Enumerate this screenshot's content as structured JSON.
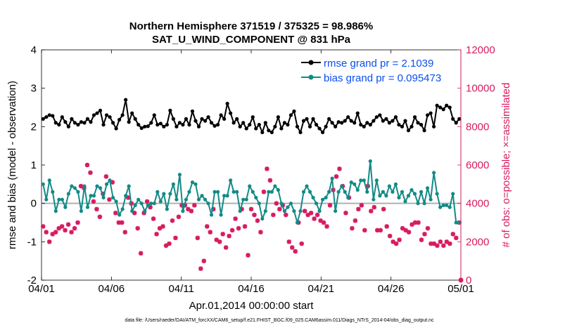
{
  "chart_data": {
    "type": "line",
    "title": "Northern Hemisphere 371519 / 375325 = 98.986%",
    "subtitle": "SAT_U_WIND_COMPONENT @ 831 hPa",
    "xlabel": "Apr.01,2014 00:00:00 start",
    "ylabel_left": "rmse and bias (model - observation)",
    "ylabel_right": "# of obs: o=possible; ×=assimilated",
    "ylim_left": [
      -2,
      4
    ],
    "ylim_right": [
      0,
      12000
    ],
    "xlim_days": [
      0,
      30
    ],
    "x_ticks": [
      0,
      5,
      10,
      15,
      20,
      25,
      30
    ],
    "x_tick_labels": [
      "04/01",
      "04/06",
      "04/11",
      "04/16",
      "04/21",
      "04/26",
      "05/01"
    ],
    "y_ticks_left": [
      -2,
      -1,
      0,
      1,
      2,
      3,
      4
    ],
    "y_tick_labels_left": [
      "-2",
      "-1",
      "0",
      "1",
      "2",
      "3",
      "4"
    ],
    "y_ticks_right": [
      0,
      2000,
      4000,
      6000,
      8000,
      10000,
      12000
    ],
    "y_tick_labels_right": [
      "0",
      "2000",
      "4000",
      "6000",
      "8000",
      "10000",
      "12000"
    ],
    "zero_line": 0,
    "colors": {
      "rmse": "#000000",
      "bias": "#138a86",
      "obs": "#d81b60",
      "legend_text": "#0a4ff0",
      "zero_line": "#b0b0b0"
    },
    "series": [
      {
        "name": "rmse",
        "legend": "rmse grand pr = 2.1039",
        "values": [
          2.2,
          2.25,
          2.3,
          2.28,
          2.1,
          2.05,
          2.25,
          2.12,
          2.0,
          2.2,
          2.1,
          2.05,
          2.12,
          2.1,
          2.2,
          2.12,
          2.3,
          2.35,
          2.42,
          2.05,
          2.3,
          2.25,
          2.1,
          1.95,
          2.18,
          2.3,
          2.7,
          2.12,
          2.35,
          2.2,
          2.05,
          1.96,
          2.0,
          2.01,
          2.1,
          2.3,
          2.05,
          2.08,
          2.0,
          2.05,
          2.42,
          2.2,
          2.0,
          2.1,
          2.05,
          2.2,
          2.05,
          2.4,
          2.15,
          2.0,
          2.2,
          2.15,
          2.25,
          2.1,
          2.02,
          2.05,
          2.3,
          2.2,
          2.6,
          2.35,
          2.1,
          2.2,
          2.0,
          2.1,
          1.95,
          2.05,
          2.25,
          1.95,
          2.05,
          1.85,
          2.1,
          1.9,
          1.85,
          2.0,
          2.25,
          1.95,
          2.1,
          2.05,
          2.3,
          2.4,
          2.0,
          1.85,
          2.15,
          2.2,
          2.0,
          2.2,
          2.05,
          1.95,
          1.85,
          2.0,
          2.2,
          2.1,
          2.0,
          2.12,
          2.1,
          2.15,
          2.25,
          2.15,
          2.1,
          2.35,
          2.05,
          2.0,
          2.1,
          2.05,
          2.15,
          2.25,
          2.3,
          2.15,
          2.2,
          2.1,
          2.15,
          2.25,
          2.05,
          2.0,
          2.15,
          1.9,
          2.0,
          2.25,
          2.1,
          2.05,
          1.9,
          2.3,
          2.35,
          2.0,
          2.55,
          2.5,
          2.45,
          2.55,
          2.5,
          2.2,
          2.1,
          2.2
        ]
      },
      {
        "name": "bias",
        "legend": "bias grand pr = 0.095473",
        "values": [
          0.5,
          0.1,
          0.6,
          0.3,
          -0.2,
          0.1,
          0.1,
          -0.1,
          0.25,
          0.45,
          0.4,
          0.3,
          -0.2,
          0.45,
          -0.1,
          0.2,
          0.2,
          0.45,
          0.4,
          0.15,
          0.5,
          0.6,
          0.15,
          0.05,
          -0.3,
          -0.15,
          0.2,
          0.45,
          -0.2,
          -0.05,
          0.1,
          0.0,
          -0.2,
          -0.05,
          0.0,
          0.0,
          0.3,
          0.05,
          0.25,
          -0.15,
          0.25,
          0.5,
          0.1,
          0.75,
          -0.2,
          0.1,
          0.3,
          0.55,
          0.5,
          0.1,
          0.2,
          0.1,
          0.0,
          -0.3,
          0.3,
          0.3,
          -0.3,
          0.2,
          0.2,
          0.6,
          0.3,
          0.3,
          -0.2,
          0.1,
          0.1,
          0.45,
          0.3,
          0.15,
          0.0,
          -0.4,
          -0.2,
          0.3,
          0.3,
          0.45,
          0.35,
          0.0,
          -0.2,
          -0.1,
          0.0,
          -0.2,
          -0.5,
          -0.2,
          0.3,
          0.45,
          0.3,
          0.15,
          0.0,
          -0.2,
          0.1,
          0.15,
          0.3,
          0.65,
          -0.2,
          0.3,
          0.45,
          0.3,
          0.15,
          0.55,
          0.5,
          0.35,
          0.6,
          0.6,
          0.3,
          1.1,
          0.1,
          0.6,
          0.2,
          0.3,
          0.2,
          0.45,
          0.3,
          0.5,
          0.15,
          0.3,
          0.05,
          0.2,
          0.35,
          0.25,
          0.0,
          0.3,
          0.0,
          0.4,
          0.1,
          0.8,
          0.25,
          -0.1,
          -0.05,
          -0.05,
          -0.1,
          0.25,
          -0.5,
          -0.5
        ]
      },
      {
        "name": "obs assimilated",
        "values_right_axis": [
          2800,
          2500,
          2000,
          2400,
          2500,
          2700,
          2800,
          2600,
          2900,
          2500,
          2700,
          3000,
          4900,
          4800,
          6000,
          5600,
          4100,
          3700,
          3300,
          4500,
          5400,
          4200,
          5100,
          3500,
          3000,
          3000,
          2500,
          4300,
          4000,
          3500,
          2700,
          1400,
          3500,
          4100,
          3800,
          3200,
          2400,
          2700,
          2800,
          1800,
          1900,
          3100,
          2200,
          3300,
          3900,
          3900,
          3700,
          3600,
          3900,
          2200,
          600,
          1000,
          2800,
          2500,
          3700,
          2100,
          2000,
          2400,
          1700,
          2300,
          2600,
          3200,
          2700,
          3700,
          2800,
          1300,
          3700,
          3400,
          3100,
          2500,
          4600,
          5800,
          5200,
          3400,
          4000,
          3700,
          3900,
          3400,
          2000,
          1700,
          1500,
          3000,
          1900,
          3600,
          3400,
          3500,
          3200,
          3400,
          3100,
          3000,
          2800,
          3900,
          4700,
          5400,
          5800,
          4900,
          3500,
          4300,
          2700,
          3100,
          3700,
          3900,
          2600,
          4900,
          3600,
          3800,
          2600,
          2600,
          3700,
          2800,
          2300,
          2000,
          1900,
          2100,
          2700,
          2600,
          2500,
          2900,
          3000,
          3000,
          2100,
          2400,
          2700,
          1900,
          1900,
          1800,
          2000,
          1800,
          2000,
          1900,
          2400,
          2200,
          3000
        ]
      },
      {
        "name": "obs possible",
        "values_right_axis": [
          0
        ]
      }
    ]
  },
  "footer_text": "data file: /Users/raeder/DAI/ATM_forcXX/CAM6_setup/f.e21.FHIST_BGC.f09_025.CAM6assim.011/Diags_NTrS_2014-04/obs_diag_output.nc"
}
